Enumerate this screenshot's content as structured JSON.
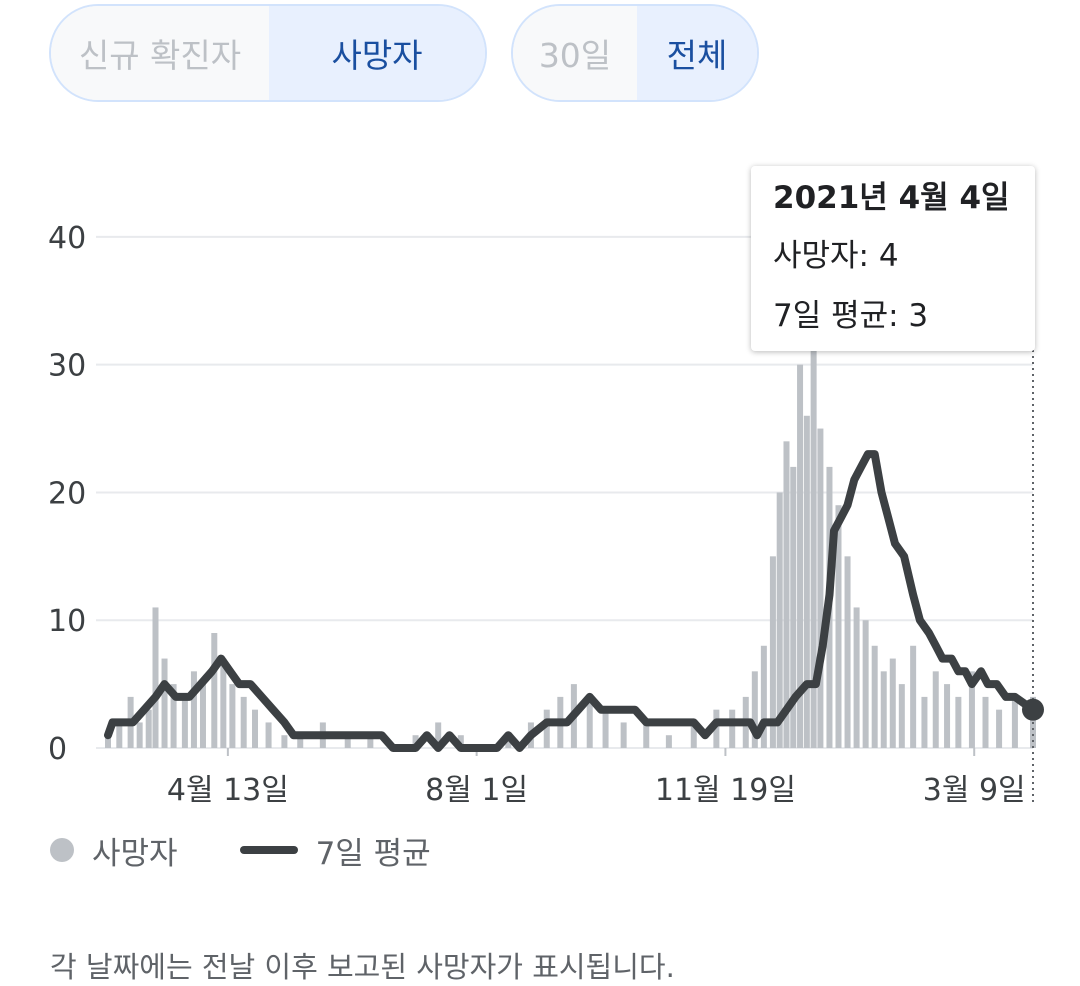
{
  "toggles": {
    "metric": {
      "options": [
        "신규 확진자",
        "사망자"
      ],
      "selected": "사망자"
    },
    "range": {
      "options": [
        "30일",
        "전체"
      ],
      "selected": "전체"
    }
  },
  "tooltip": {
    "date": "2021년 4월 4일",
    "deaths_label": "사망자: 4",
    "avg_label": "7일 평균: 3"
  },
  "legend": {
    "bars": "사망자",
    "line": "7일 평균"
  },
  "footnote": "각 날짜에는 전날 이후 보고된 사망자가 표시됩니다.",
  "colors": {
    "bar": "#bdc1c6",
    "line": "#3c4043",
    "accent": "#1a4fa0",
    "grid": "#e8eaed"
  },
  "chart_data": {
    "type": "bar",
    "ylim": [
      0,
      45
    ],
    "yticks": [
      0,
      10,
      20,
      30,
      40
    ],
    "x_start": "2020-02-20",
    "x_end": "2021-04-04",
    "xtick_labels": [
      {
        "label": "4월 13일",
        "date": "2020-04-13"
      },
      {
        "label": "8월 1일",
        "date": "2020-08-01"
      },
      {
        "label": "11월 19일",
        "date": "2020-11-19"
      },
      {
        "label": "3월 9일",
        "date": "2021-03-09"
      }
    ],
    "series": [
      {
        "name": "사망자",
        "kind": "bars",
        "points": [
          [
            "2020-02-20",
            1
          ],
          [
            "2020-02-25",
            2
          ],
          [
            "2020-03-01",
            4
          ],
          [
            "2020-03-05",
            2
          ],
          [
            "2020-03-09",
            3
          ],
          [
            "2020-03-12",
            11
          ],
          [
            "2020-03-16",
            7
          ],
          [
            "2020-03-20",
            5
          ],
          [
            "2020-03-25",
            4
          ],
          [
            "2020-03-29",
            6
          ],
          [
            "2020-04-02",
            5
          ],
          [
            "2020-04-07",
            9
          ],
          [
            "2020-04-11",
            7
          ],
          [
            "2020-04-15",
            5
          ],
          [
            "2020-04-20",
            4
          ],
          [
            "2020-04-25",
            3
          ],
          [
            "2020-05-01",
            2
          ],
          [
            "2020-05-08",
            1
          ],
          [
            "2020-05-15",
            1
          ],
          [
            "2020-05-25",
            2
          ],
          [
            "2020-06-05",
            1
          ],
          [
            "2020-06-15",
            1
          ],
          [
            "2020-06-25",
            0
          ],
          [
            "2020-07-05",
            1
          ],
          [
            "2020-07-15",
            2
          ],
          [
            "2020-07-25",
            1
          ],
          [
            "2020-08-05",
            0
          ],
          [
            "2020-08-15",
            1
          ],
          [
            "2020-08-25",
            2
          ],
          [
            "2020-09-01",
            3
          ],
          [
            "2020-09-07",
            4
          ],
          [
            "2020-09-13",
            5
          ],
          [
            "2020-09-20",
            4
          ],
          [
            "2020-09-27",
            3
          ],
          [
            "2020-10-05",
            2
          ],
          [
            "2020-10-15",
            2
          ],
          [
            "2020-10-25",
            1
          ],
          [
            "2020-11-05",
            2
          ],
          [
            "2020-11-15",
            3
          ],
          [
            "2020-11-22",
            3
          ],
          [
            "2020-11-28",
            4
          ],
          [
            "2020-12-02",
            6
          ],
          [
            "2020-12-06",
            8
          ],
          [
            "2020-12-10",
            15
          ],
          [
            "2020-12-13",
            20
          ],
          [
            "2020-12-16",
            24
          ],
          [
            "2020-12-19",
            22
          ],
          [
            "2020-12-22",
            30
          ],
          [
            "2020-12-25",
            26
          ],
          [
            "2020-12-28",
            32
          ],
          [
            "2020-12-31",
            25
          ],
          [
            "2021-01-04",
            22
          ],
          [
            "2021-01-08",
            19
          ],
          [
            "2021-01-12",
            15
          ],
          [
            "2021-01-16",
            11
          ],
          [
            "2021-01-20",
            10
          ],
          [
            "2021-01-24",
            8
          ],
          [
            "2021-01-28",
            6
          ],
          [
            "2021-02-01",
            7
          ],
          [
            "2021-02-05",
            5
          ],
          [
            "2021-02-10",
            8
          ],
          [
            "2021-02-15",
            4
          ],
          [
            "2021-02-20",
            6
          ],
          [
            "2021-02-25",
            5
          ],
          [
            "2021-03-02",
            4
          ],
          [
            "2021-03-08",
            6
          ],
          [
            "2021-03-14",
            4
          ],
          [
            "2021-03-20",
            3
          ],
          [
            "2021-03-27",
            4
          ],
          [
            "2021-04-04",
            4
          ]
        ]
      },
      {
        "name": "7일 평균",
        "kind": "line",
        "points": [
          [
            "2020-02-20",
            1
          ],
          [
            "2020-02-22",
            2
          ],
          [
            "2020-03-02",
            2
          ],
          [
            "2020-03-07",
            3
          ],
          [
            "2020-03-12",
            4
          ],
          [
            "2020-03-16",
            5
          ],
          [
            "2020-03-21",
            4
          ],
          [
            "2020-03-27",
            4
          ],
          [
            "2020-04-01",
            5
          ],
          [
            "2020-04-06",
            6
          ],
          [
            "2020-04-10",
            7
          ],
          [
            "2020-04-14",
            6
          ],
          [
            "2020-04-18",
            5
          ],
          [
            "2020-04-23",
            5
          ],
          [
            "2020-04-28",
            4
          ],
          [
            "2020-05-03",
            3
          ],
          [
            "2020-05-08",
            2
          ],
          [
            "2020-05-12",
            1
          ],
          [
            "2020-06-01",
            1
          ],
          [
            "2020-06-20",
            1
          ],
          [
            "2020-06-25",
            0
          ],
          [
            "2020-07-05",
            0
          ],
          [
            "2020-07-10",
            1
          ],
          [
            "2020-07-15",
            0
          ],
          [
            "2020-07-20",
            1
          ],
          [
            "2020-07-25",
            0
          ],
          [
            "2020-08-10",
            0
          ],
          [
            "2020-08-15",
            1
          ],
          [
            "2020-08-20",
            0
          ],
          [
            "2020-08-25",
            1
          ],
          [
            "2020-09-01",
            2
          ],
          [
            "2020-09-10",
            2
          ],
          [
            "2020-09-15",
            3
          ],
          [
            "2020-09-20",
            4
          ],
          [
            "2020-09-25",
            3
          ],
          [
            "2020-10-10",
            3
          ],
          [
            "2020-10-15",
            2
          ],
          [
            "2020-11-05",
            2
          ],
          [
            "2020-11-10",
            1
          ],
          [
            "2020-11-15",
            2
          ],
          [
            "2020-11-30",
            2
          ],
          [
            "2020-12-03",
            1
          ],
          [
            "2020-12-06",
            2
          ],
          [
            "2020-12-12",
            2
          ],
          [
            "2020-12-16",
            3
          ],
          [
            "2020-12-20",
            4
          ],
          [
            "2020-12-25",
            5
          ],
          [
            "2020-12-29",
            5
          ],
          [
            "2021-01-01",
            8
          ],
          [
            "2021-01-04",
            12
          ],
          [
            "2021-01-06",
            17
          ],
          [
            "2021-01-09",
            18
          ],
          [
            "2021-01-12",
            19
          ],
          [
            "2021-01-15",
            21
          ],
          [
            "2021-01-18",
            22
          ],
          [
            "2021-01-21",
            23
          ],
          [
            "2021-01-24",
            23
          ],
          [
            "2021-01-27",
            20
          ],
          [
            "2021-01-30",
            18
          ],
          [
            "2021-02-02",
            16
          ],
          [
            "2021-02-06",
            15
          ],
          [
            "2021-02-10",
            12
          ],
          [
            "2021-02-13",
            10
          ],
          [
            "2021-02-17",
            9
          ],
          [
            "2021-02-20",
            8
          ],
          [
            "2021-02-23",
            7
          ],
          [
            "2021-02-27",
            7
          ],
          [
            "2021-03-02",
            6
          ],
          [
            "2021-03-05",
            6
          ],
          [
            "2021-03-08",
            5
          ],
          [
            "2021-03-12",
            6
          ],
          [
            "2021-03-15",
            5
          ],
          [
            "2021-03-19",
            5
          ],
          [
            "2021-03-23",
            4
          ],
          [
            "2021-03-27",
            4
          ],
          [
            "2021-04-04",
            3
          ]
        ]
      }
    ],
    "highlight": {
      "date": "2021-04-04",
      "value": 3
    }
  }
}
